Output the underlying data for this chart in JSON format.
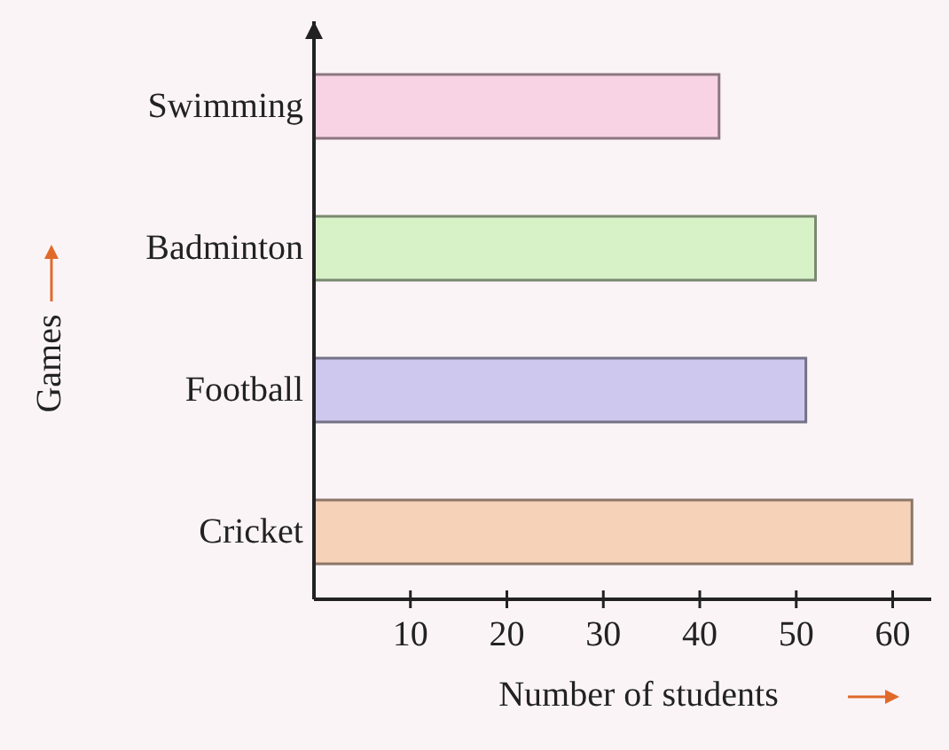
{
  "chart_data": {
    "type": "bar",
    "orientation": "horizontal",
    "categories": [
      "Swimming",
      "Badminton",
      "Football",
      "Cricket"
    ],
    "values": [
      42,
      52,
      51,
      62
    ],
    "colors": [
      "#f7d3e3",
      "#d8f2c8",
      "#cfc8ee",
      "#f6d2b8"
    ],
    "xlim": [
      0,
      64
    ],
    "xticks": [
      10,
      20,
      30,
      40,
      50,
      60
    ],
    "xlabel": "Number of students",
    "ylabel": "Games",
    "grid": false
  }
}
